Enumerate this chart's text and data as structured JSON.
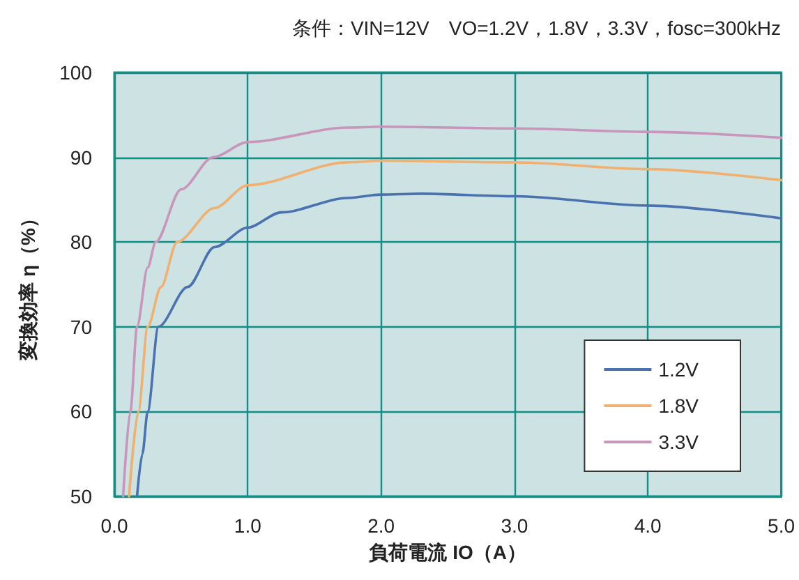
{
  "chart_data": {
    "type": "line",
    "title": "条件：VIN=12V　VO=1.2V，1.8V，3.3V，fosc=300kHz",
    "xlabel": "負荷電流 IO（A）",
    "ylabel": "変換効率 η（%）",
    "xlim": [
      0,
      5
    ],
    "xticks": [
      {
        "value": 0,
        "label": "0.0"
      },
      {
        "value": 1,
        "label": "1.0"
      },
      {
        "value": 2,
        "label": "2.0"
      },
      {
        "value": 3,
        "label": "3.0"
      },
      {
        "value": 4,
        "label": "4.0"
      },
      {
        "value": 5,
        "label": "5.0"
      }
    ],
    "ylim": [
      50,
      100
    ],
    "yticks": [
      50,
      60,
      70,
      80,
      90,
      100
    ],
    "grid": true,
    "legend": "bottom right",
    "marker": "none",
    "line_style": "solid",
    "series": [
      {
        "name": "1.2V",
        "color": "#4a72b0",
        "x": [
          0.17,
          0.21,
          0.25,
          0.33,
          0.55,
          0.75,
          1,
          1.25,
          1.75,
          2,
          2.3,
          3,
          4,
          5
        ],
        "values": [
          50,
          55,
          60,
          70,
          74.7,
          79.4,
          81.7,
          83.5,
          85.2,
          85.6,
          85.7,
          85.4,
          84.3,
          82.8
        ]
      },
      {
        "name": "1.8V",
        "color": "#f0b070",
        "x": [
          0.11,
          0.18,
          0.25,
          0.35,
          0.47,
          0.75,
          1,
          1.75,
          2,
          3,
          4,
          5
        ],
        "values": [
          50,
          60,
          70,
          74.7,
          80,
          84,
          86.7,
          89.4,
          89.6,
          89.4,
          88.6,
          87.3
        ]
      },
      {
        "name": "3.3V",
        "color": "#c896bc",
        "x": [
          0.066,
          0.12,
          0.17,
          0.25,
          0.31,
          0.5,
          0.74,
          1,
          1.75,
          2,
          3,
          4,
          5
        ],
        "values": [
          50,
          60,
          70,
          77,
          80,
          86.2,
          90,
          91.8,
          93.5,
          93.6,
          93.4,
          93,
          92.3
        ]
      }
    ]
  }
}
